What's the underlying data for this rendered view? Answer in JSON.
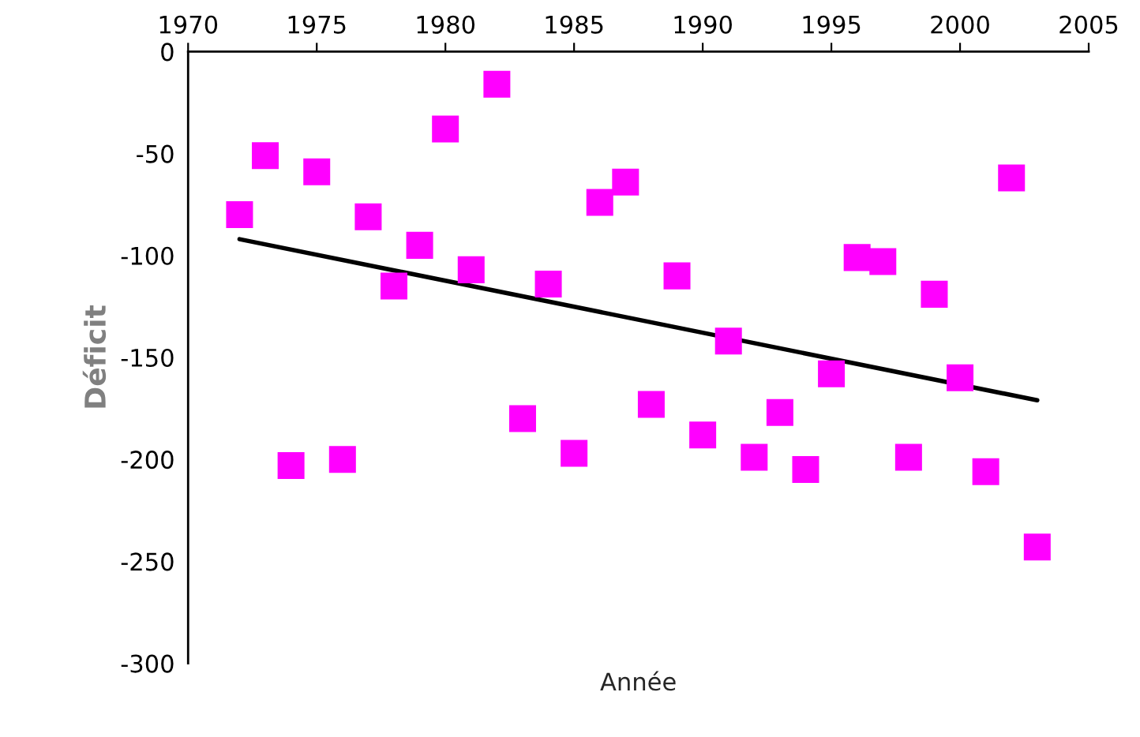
{
  "chart_data": {
    "type": "scatter",
    "xlabel": "Année",
    "ylabel": "Déficit",
    "grid": false,
    "legend": false,
    "xlim": [
      1970,
      2005
    ],
    "ylim": [
      -300,
      0
    ],
    "xticks": [
      1970,
      1975,
      1980,
      1985,
      1990,
      1995,
      2000,
      2005
    ],
    "yticks": [
      -300,
      -250,
      -200,
      -150,
      -100,
      -50,
      0
    ],
    "series": [
      {
        "marker": "square",
        "color": "#ff00ff",
        "x": [
          1972,
          1973,
          1974,
          1975,
          1976,
          1977,
          1978,
          1979,
          1980,
          1981,
          1982,
          1983,
          1984,
          1985,
          1986,
          1987,
          1988,
          1989,
          1990,
          1991,
          1992,
          1993,
          1994,
          1995,
          1996,
          1997,
          1998,
          1999,
          2000,
          2001,
          2002,
          2003
        ],
        "values": [
          -80,
          -51,
          -203,
          -59,
          -200,
          -81,
          -115,
          -95,
          -38,
          -107,
          -16,
          -180,
          -114,
          -197,
          -74,
          -64,
          -173,
          -110,
          -188,
          -142,
          -199,
          -177,
          -205,
          -158,
          -101,
          -103,
          -199,
          -119,
          -160,
          -206,
          -62,
          -243
        ]
      },
      {
        "type": "line",
        "color": "#000000",
        "x": [
          1972,
          2003
        ],
        "values": [
          -92,
          -171
        ]
      }
    ]
  }
}
